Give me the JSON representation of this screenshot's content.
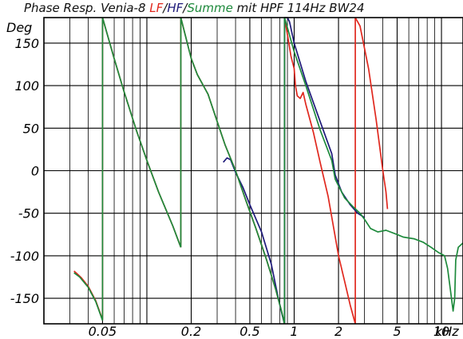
{
  "chart_data": {
    "type": "line",
    "title": {
      "prefix": "Phase Resp. Venia-8 ",
      "lf": "LF",
      "sep1": "/",
      "hf": "HF",
      "sep2": "/",
      "summe": "Summe",
      "suffix": " mit HPF 114Hz BW24"
    },
    "ylabel": "Deg",
    "xlabel_unit": "kHz",
    "x_scale": "log",
    "xlim_khz": [
      0.02,
      14
    ],
    "ylim": [
      -180,
      180
    ],
    "grid": true,
    "y_ticks": [
      {
        "value": 150,
        "label": "150"
      },
      {
        "value": 100,
        "label": "100"
      },
      {
        "value": 50,
        "label": "50"
      },
      {
        "value": 0,
        "label": "0"
      },
      {
        "value": -50,
        "label": "-50"
      },
      {
        "value": -100,
        "label": "-100"
      },
      {
        "value": -150,
        "label": "-150"
      }
    ],
    "x_tick_labels": [
      {
        "value": 0.05,
        "label": "0.05"
      },
      {
        "value": 0.2,
        "label": "0.2"
      },
      {
        "value": 0.5,
        "label": "0.5"
      },
      {
        "value": 1,
        "label": "1"
      },
      {
        "value": 2,
        "label": "2"
      },
      {
        "value": 5,
        "label": "5"
      },
      {
        "value": 10,
        "label": "10"
      }
    ],
    "series": [
      {
        "name": "LF",
        "color": "#e0281e",
        "points": [
          [
            0.032,
            -118
          ],
          [
            0.034,
            -122
          ],
          [
            0.036,
            -126
          ],
          [
            0.04,
            -136
          ],
          [
            0.045,
            -153
          ],
          [
            0.05,
            -175
          ],
          [
            0.05,
            180
          ],
          [
            0.06,
            132
          ],
          [
            0.07,
            93
          ],
          [
            0.085,
            47
          ],
          [
            0.1,
            12
          ],
          [
            0.12,
            -25
          ],
          [
            0.15,
            -65
          ],
          [
            0.17,
            -90
          ],
          [
            0.17,
            180
          ],
          [
            0.2,
            132
          ],
          [
            0.22,
            113
          ],
          [
            0.26,
            90
          ],
          [
            0.3,
            58
          ],
          [
            0.34,
            30
          ],
          [
            0.4,
            0
          ],
          [
            0.47,
            -35
          ],
          [
            0.55,
            -68
          ],
          [
            0.65,
            -105
          ],
          [
            0.75,
            -140
          ],
          [
            0.82,
            -165
          ],
          [
            0.86,
            -180
          ],
          [
            0.86,
            180
          ],
          [
            0.9,
            160
          ],
          [
            0.95,
            135
          ],
          [
            1.0,
            120
          ],
          [
            1.02,
            100
          ],
          [
            1.05,
            88
          ],
          [
            1.1,
            85
          ],
          [
            1.15,
            92
          ],
          [
            1.2,
            78
          ],
          [
            1.35,
            45
          ],
          [
            1.5,
            10
          ],
          [
            1.7,
            -30
          ],
          [
            2.0,
            -100
          ],
          [
            2.2,
            -130
          ],
          [
            2.4,
            -158
          ],
          [
            2.6,
            -180
          ],
          [
            2.6,
            180
          ],
          [
            2.8,
            170
          ],
          [
            3.2,
            120
          ],
          [
            3.6,
            60
          ],
          [
            4.0,
            0
          ],
          [
            4.2,
            -25
          ],
          [
            4.3,
            -45
          ]
        ]
      },
      {
        "name": "HF",
        "color": "#1e1a7a",
        "points": [
          [
            0.33,
            10
          ],
          [
            0.35,
            15
          ],
          [
            0.37,
            13
          ],
          [
            0.4,
            -2
          ],
          [
            0.45,
            -20
          ],
          [
            0.5,
            -40
          ],
          [
            0.6,
            -72
          ],
          [
            0.7,
            -110
          ],
          [
            0.78,
            -150
          ],
          [
            0.83,
            -170
          ],
          [
            0.86,
            -180
          ],
          [
            0.86,
            180
          ],
          [
            0.9,
            185
          ],
          [
            0.93,
            175
          ],
          [
            1.0,
            150
          ],
          [
            1.2,
            105
          ],
          [
            1.5,
            58
          ],
          [
            1.8,
            20
          ],
          [
            1.9,
            -5
          ],
          [
            2.1,
            -25
          ],
          [
            2.4,
            -40
          ],
          [
            2.7,
            -50
          ],
          [
            3.0,
            -55
          ]
        ]
      },
      {
        "name": "Summe",
        "color": "#1e8a3c",
        "points": [
          [
            0.032,
            -120
          ],
          [
            0.035,
            -125
          ],
          [
            0.04,
            -137
          ],
          [
            0.045,
            -154
          ],
          [
            0.05,
            -176
          ],
          [
            0.05,
            180
          ],
          [
            0.06,
            132
          ],
          [
            0.07,
            93
          ],
          [
            0.085,
            47
          ],
          [
            0.1,
            12
          ],
          [
            0.12,
            -25
          ],
          [
            0.15,
            -65
          ],
          [
            0.17,
            -90
          ],
          [
            0.17,
            180
          ],
          [
            0.2,
            132
          ],
          [
            0.22,
            113
          ],
          [
            0.26,
            90
          ],
          [
            0.3,
            58
          ],
          [
            0.34,
            30
          ],
          [
            0.4,
            0
          ],
          [
            0.47,
            -35
          ],
          [
            0.55,
            -68
          ],
          [
            0.65,
            -105
          ],
          [
            0.75,
            -140
          ],
          [
            0.82,
            -165
          ],
          [
            0.86,
            -180
          ],
          [
            0.86,
            180
          ],
          [
            0.9,
            168
          ],
          [
            1.0,
            140
          ],
          [
            1.2,
            100
          ],
          [
            1.5,
            48
          ],
          [
            1.8,
            12
          ],
          [
            1.9,
            -10
          ],
          [
            2.2,
            -32
          ],
          [
            2.5,
            -42
          ],
          [
            2.8,
            -50
          ],
          [
            3.0,
            -57
          ],
          [
            3.3,
            -68
          ],
          [
            3.7,
            -72
          ],
          [
            4.2,
            -70
          ],
          [
            5.0,
            -75
          ],
          [
            5.5,
            -78
          ],
          [
            6.5,
            -80
          ],
          [
            7.5,
            -84
          ],
          [
            8.5,
            -90
          ],
          [
            9.5,
            -96
          ],
          [
            10.5,
            -100
          ],
          [
            11.0,
            -115
          ],
          [
            11.5,
            -140
          ],
          [
            12.0,
            -165
          ],
          [
            12.3,
            -150
          ],
          [
            12.5,
            -105
          ],
          [
            13.0,
            -90
          ],
          [
            14.0,
            -85
          ]
        ]
      }
    ]
  }
}
